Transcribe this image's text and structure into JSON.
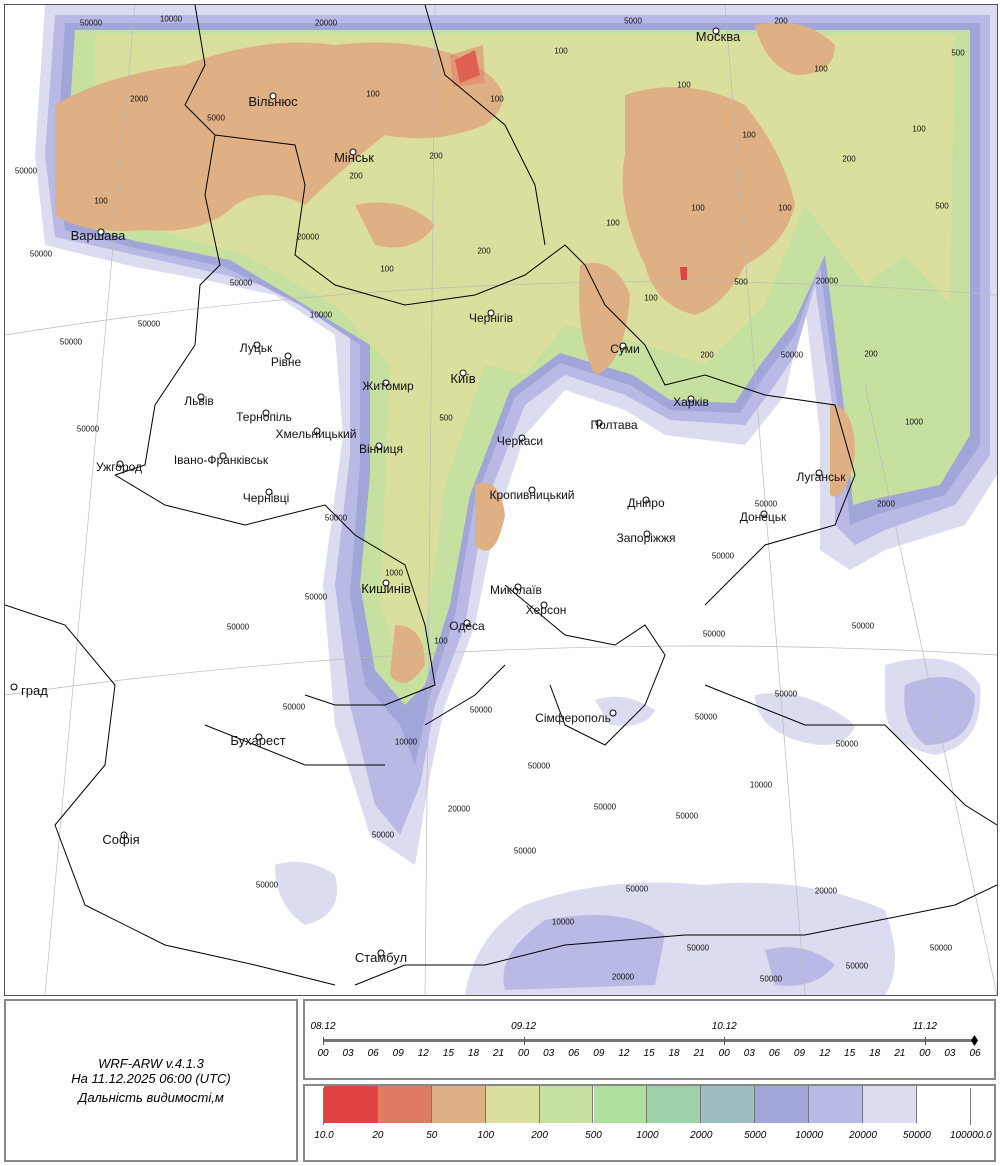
{
  "info": {
    "model": "WRF-ARW v.4.1.3",
    "valid_time": "На 11.12.2025 06:00 (UTC)",
    "parameter": "Дальність видимості,м"
  },
  "timeline": {
    "dates": [
      "08.12",
      "09.12",
      "10.12",
      "11.12"
    ],
    "hours": [
      "00",
      "03",
      "06",
      "09",
      "12",
      "15",
      "18",
      "21",
      "00",
      "03",
      "06",
      "09",
      "12",
      "15",
      "18",
      "21",
      "00",
      "03",
      "06",
      "09",
      "12",
      "15",
      "18",
      "21",
      "00",
      "03",
      "06"
    ],
    "current": "11.12 06"
  },
  "legend": {
    "labels": [
      "10.0",
      "20",
      "50",
      "100",
      "200",
      "500",
      "1000",
      "2000",
      "5000",
      "10000",
      "20000",
      "50000",
      "100000.0"
    ],
    "colors": [
      "#e04242",
      "#e07b63",
      "#e0b085",
      "#dadf9d",
      "#c6e0a0",
      "#aee09f",
      "#9ed1a9",
      "#9fbcc1",
      "#a1a5d8",
      "#b9b9e6",
      "#dcdcf0",
      "#ffffff"
    ]
  },
  "cities": [
    "Москва",
    "Вільнюс",
    "Мінськ",
    "Варшава",
    "Луцьк",
    "Рівне",
    "Львів",
    "Тернопіль",
    "Хмельницький",
    "Житомир",
    "Київ",
    "Чернігів",
    "Суми",
    "Харків",
    "Полтава",
    "Черкаси",
    "Вінниця",
    "Івано-Франківськ",
    "Ужгород",
    "Чернівці",
    "Кропивницький",
    "Дніпро",
    "Запоріжжя",
    "Донецьк",
    "Луганськ",
    "Кишинів",
    "Миколаїв",
    "Херсон",
    "Одеса",
    "Сімферополь",
    "Бухарест",
    "Софія",
    "Стамбул",
    "град"
  ],
  "contour_labels": [
    "50000",
    "10000",
    "20000",
    "5000",
    "200",
    "500",
    "100",
    "2000",
    "5000",
    "100",
    "100",
    "100",
    "100",
    "100",
    "200",
    "200",
    "200",
    "100",
    "50000",
    "100",
    "20000",
    "200",
    "100",
    "100",
    "100",
    "500",
    "50000",
    "50000",
    "10000",
    "100",
    "20000",
    "500",
    "100",
    "200",
    "50000",
    "50000",
    "50000",
    "200",
    "500",
    "1000",
    "50000",
    "50000",
    "2000",
    "50000",
    "50000",
    "1000",
    "50000",
    "50000",
    "100",
    "50000",
    "50000",
    "50000",
    "10000",
    "50000",
    "50000",
    "50000",
    "50000",
    "50000",
    "10000",
    "20000",
    "50000",
    "50000",
    "50000",
    "50000",
    "50000",
    "50000",
    "20000",
    "10000",
    "50000",
    "50000",
    "20000",
    "50000",
    "50000"
  ]
}
